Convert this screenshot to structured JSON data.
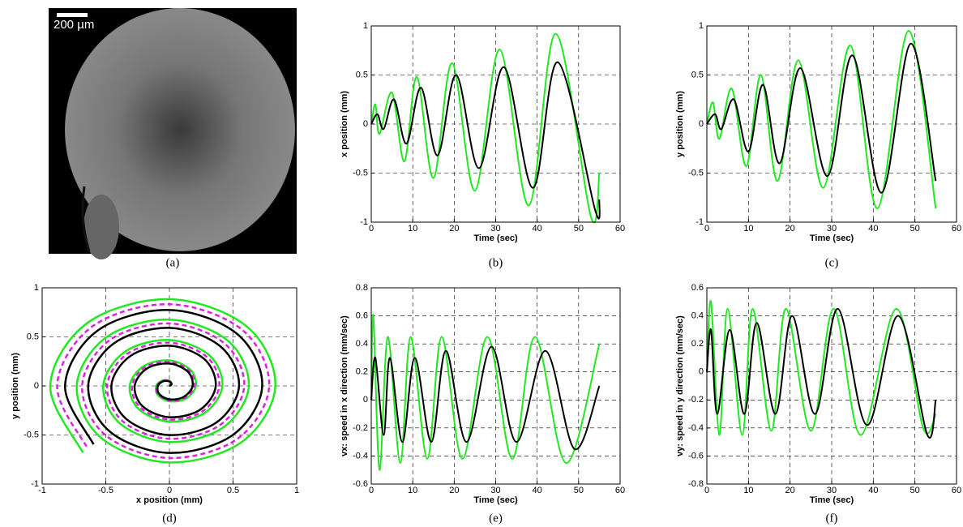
{
  "image": {
    "scale_label": "200 µm",
    "caption": "(a)"
  },
  "chart_data": [
    {
      "type": "line",
      "caption": "(b)",
      "xlabel": "Time (sec)",
      "ylabel": "x position (mm)",
      "xlim": [
        0,
        60
      ],
      "ylim": [
        -1,
        1
      ],
      "xticks": [
        0,
        10,
        20,
        30,
        40,
        50,
        60
      ],
      "yticks": [
        -1,
        -0.5,
        0,
        0.5,
        1
      ],
      "grid": true,
      "series": [
        {
          "color": "#22e822",
          "x": [
            0,
            1,
            2,
            5,
            8,
            11,
            15,
            19.5,
            25,
            31,
            38,
            44.5,
            53,
            55
          ],
          "values": [
            0,
            0.2,
            -0.1,
            0.32,
            -0.38,
            0.48,
            -0.55,
            0.62,
            -0.68,
            0.76,
            -0.83,
            0.92,
            -0.95,
            -0.5
          ]
        },
        {
          "color": "#000000",
          "x": [
            0,
            1.5,
            3,
            5.5,
            8.5,
            12,
            16,
            20.5,
            26,
            32,
            39,
            45,
            54,
            55
          ],
          "values": [
            0,
            0.1,
            -0.05,
            0.25,
            -0.2,
            0.37,
            -0.32,
            0.5,
            -0.45,
            0.58,
            -0.65,
            0.63,
            -0.88,
            -0.77
          ]
        }
      ]
    },
    {
      "type": "line",
      "caption": "(c)",
      "xlabel": "Time (sec)",
      "ylabel": "y position (mm)",
      "xlim": [
        0,
        60
      ],
      "ylim": [
        -1,
        1
      ],
      "xticks": [
        0,
        10,
        20,
        30,
        40,
        50,
        60
      ],
      "yticks": [
        -1,
        -0.5,
        0,
        0.5,
        1
      ],
      "grid": true,
      "series": [
        {
          "color": "#22e822",
          "x": [
            0,
            1.5,
            3,
            6,
            9.5,
            13,
            17,
            22,
            28,
            34.5,
            41,
            48.5,
            55
          ],
          "values": [
            0,
            0.22,
            -0.15,
            0.36,
            -0.43,
            0.5,
            -0.58,
            0.65,
            -0.65,
            0.8,
            -0.86,
            0.95,
            -0.86
          ]
        },
        {
          "color": "#000000",
          "x": [
            0,
            2,
            3.5,
            6.5,
            10,
            13.5,
            17.5,
            22.5,
            29,
            35,
            42,
            49,
            55
          ],
          "values": [
            0,
            0.1,
            -0.05,
            0.25,
            -0.28,
            0.4,
            -0.4,
            0.57,
            -0.53,
            0.7,
            -0.7,
            0.82,
            -0.58
          ]
        }
      ]
    },
    {
      "type": "line",
      "caption": "(d)",
      "xlabel": "x position (mm)",
      "ylabel": "y position (mm)",
      "xlim": [
        -1,
        1
      ],
      "ylim": [
        -1,
        1
      ],
      "xticks": [
        -1,
        -0.5,
        0,
        0.5,
        1
      ],
      "yticks": [
        -1,
        -0.5,
        0,
        0.5,
        1
      ],
      "grid": true,
      "series": [
        {
          "color": "#22e822",
          "style": "solid",
          "x": [
            0,
            0.018,
            0,
            -0.055,
            -0.104,
            -0.092,
            0,
            0.129,
            0.208,
            0.165,
            0,
            -0.202,
            -0.312,
            -0.239,
            0,
            0.276,
            0.416,
            0.313,
            0,
            -0.349,
            -0.52,
            -0.386,
            0,
            0.423,
            0.624,
            0.46,
            0,
            -0.496,
            -0.728,
            -0.533,
            0,
            0.57,
            0.832,
            0.607,
            0,
            -0.643,
            -0.936,
            -0.68
          ],
          "values": [
            0,
            0.018,
            0.052,
            0.055,
            0,
            -0.092,
            -0.156,
            -0.129,
            0,
            0.165,
            0.26,
            0.202,
            0,
            -0.239,
            -0.364,
            -0.276,
            0,
            0.313,
            0.468,
            0.349,
            0,
            -0.386,
            -0.572,
            -0.423,
            0,
            0.46,
            0.676,
            0.496,
            0,
            -0.533,
            -0.78,
            -0.57,
            0,
            0.607,
            0.884,
            0.643,
            0,
            -0.68
          ]
        },
        {
          "color": "#e020e0",
          "style": "dashed",
          "x": [
            0,
            0.017,
            0,
            -0.052,
            -0.098,
            -0.087,
            0,
            0.121,
            0.196,
            0.156,
            0,
            -0.191,
            -0.294,
            -0.225,
            0,
            0.26,
            0.392,
            0.295,
            0,
            -0.329,
            -0.49,
            -0.364,
            0,
            0.398,
            0.588,
            0.433,
            0,
            -0.468,
            -0.686,
            -0.502,
            0,
            0.537,
            0.784,
            0.572,
            0,
            -0.606,
            -0.882,
            -0.641
          ],
          "values": [
            0,
            0.017,
            0.049,
            0.052,
            0,
            -0.087,
            -0.147,
            -0.121,
            0,
            0.156,
            0.245,
            0.191,
            0,
            -0.225,
            -0.343,
            -0.26,
            0,
            0.295,
            0.441,
            0.329,
            0,
            -0.364,
            -0.539,
            -0.398,
            0,
            0.433,
            0.637,
            0.468,
            0,
            -0.502,
            -0.735,
            -0.537,
            0,
            0.572,
            0.833,
            0.606,
            0,
            -0.641
          ]
        },
        {
          "color": "#000000",
          "style": "solid",
          "x": [
            0,
            0.016,
            0,
            -0.048,
            -0.091,
            -0.081,
            0,
            0.112,
            0.182,
            0.145,
            0,
            -0.177,
            -0.273,
            -0.209,
            0,
            0.242,
            0.364,
            0.274,
            0,
            -0.306,
            -0.456,
            -0.338,
            0,
            0.371,
            0.547,
            0.402,
            0,
            -0.435,
            -0.638,
            -0.467,
            0,
            0.499,
            0.729,
            0.531,
            0,
            -0.564,
            -0.82,
            -0.596
          ],
          "values": [
            0,
            0.016,
            0.046,
            0.048,
            0,
            -0.081,
            -0.137,
            -0.112,
            0,
            0.145,
            0.228,
            0.177,
            0,
            -0.209,
            -0.319,
            -0.242,
            0,
            0.274,
            0.41,
            0.306,
            0,
            -0.338,
            -0.501,
            -0.371,
            0,
            0.402,
            0.592,
            0.435,
            0,
            -0.467,
            -0.683,
            -0.499,
            0,
            0.531,
            0.774,
            0.564,
            0,
            -0.596
          ]
        }
      ]
    },
    {
      "type": "line",
      "caption": "(e)",
      "xlabel": "Time (sec)",
      "ylabel": "vx: speed in x direction (mm/sec)",
      "xlim": [
        0,
        60
      ],
      "ylim": [
        -0.6,
        0.8
      ],
      "xticks": [
        0,
        10,
        20,
        30,
        40,
        50,
        60
      ],
      "yticks": [
        -0.6,
        -0.4,
        -0.2,
        0,
        0.2,
        0.4,
        0.6,
        0.8
      ],
      "grid": true,
      "series": [
        {
          "color": "#22e822",
          "x": [
            0,
            0.5,
            2,
            4,
            7,
            9.5,
            13.5,
            17,
            22,
            28,
            34,
            39.5,
            47,
            55
          ],
          "values": [
            0,
            0.6,
            -0.5,
            0.45,
            -0.45,
            0.45,
            -0.42,
            0.45,
            -0.42,
            0.45,
            -0.42,
            0.45,
            -0.45,
            0.4
          ]
        },
        {
          "color": "#000000",
          "x": [
            0,
            1,
            3,
            4.5,
            7.5,
            10.5,
            14.5,
            18,
            23,
            29,
            35,
            42,
            49,
            55
          ],
          "values": [
            0,
            0.3,
            -0.25,
            0.3,
            -0.3,
            0.3,
            -0.3,
            0.35,
            -0.3,
            0.38,
            -0.3,
            0.35,
            -0.35,
            0.1
          ]
        }
      ]
    },
    {
      "type": "line",
      "caption": "(f)",
      "xlabel": "Time (sec)",
      "ylabel": "vy: speed in y direction (mm/sec)",
      "xlim": [
        0,
        60
      ],
      "ylim": [
        -0.8,
        0.6
      ],
      "xticks": [
        0,
        10,
        20,
        30,
        40,
        50,
        60
      ],
      "yticks": [
        -0.8,
        -0.6,
        -0.4,
        -0.2,
        0,
        0.2,
        0.4,
        0.6
      ],
      "grid": true,
      "series": [
        {
          "color": "#22e822",
          "x": [
            0,
            1,
            3,
            5,
            8.5,
            11,
            15.5,
            19,
            25,
            30.5,
            37,
            45.5,
            52,
            55
          ],
          "values": [
            0,
            0.5,
            -0.45,
            0.45,
            -0.45,
            0.45,
            -0.42,
            0.45,
            -0.42,
            0.45,
            -0.45,
            0.45,
            -0.4,
            -0.3
          ]
        },
        {
          "color": "#000000",
          "x": [
            0,
            1,
            2.5,
            5.5,
            9,
            12,
            16.5,
            20.5,
            26,
            31.5,
            38.5,
            46,
            53,
            55
          ],
          "values": [
            0,
            0.3,
            -0.3,
            0.3,
            -0.3,
            0.35,
            -0.3,
            0.4,
            -0.3,
            0.45,
            -0.38,
            0.4,
            -0.45,
            -0.2
          ]
        }
      ]
    }
  ]
}
